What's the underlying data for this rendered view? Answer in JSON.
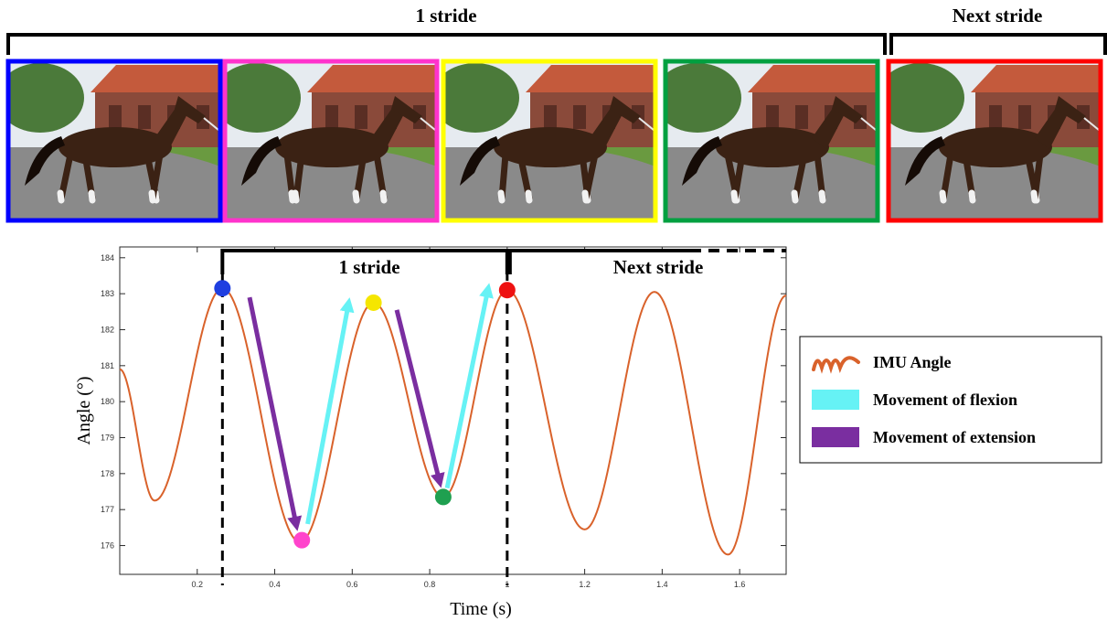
{
  "top_strip": {
    "stride_label": "1 stride",
    "next_stride_label": "Next stride",
    "frames": [
      {
        "border_color": "#0000ff"
      },
      {
        "border_color": "#ff33cc"
      },
      {
        "border_color": "#ffff00"
      },
      {
        "border_color": "#00a040"
      },
      {
        "border_color": "#ff0000"
      }
    ],
    "palette": {
      "sky": "#e6ebf0",
      "trees": "#4b7a3a",
      "roof": "#c45a3c",
      "wall": "#8a4a3a",
      "ground": "#8a8a8a",
      "grass": "#6a9a40",
      "horse": "#3b2214",
      "mane": "#150b06",
      "socks": "#f2f2f2"
    }
  },
  "chart_data": {
    "type": "line",
    "title": "",
    "xlabel": "Time (s)",
    "ylabel": "Angle (°)",
    "xlim": [
      0,
      1.72
    ],
    "ylim": [
      175.2,
      184.3
    ],
    "xticks": [
      0.2,
      0.4,
      0.6,
      0.8,
      1,
      1.2,
      1.4,
      1.6
    ],
    "xtick_labels": [
      "0.2",
      "0.4",
      "0.6",
      "0.8",
      "1",
      "1.2",
      "1.4",
      "1.6"
    ],
    "yticks": [
      176,
      177,
      178,
      179,
      180,
      181,
      182,
      183,
      184
    ],
    "ytick_labels": [
      "176",
      "177",
      "178",
      "179",
      "180",
      "181",
      "182",
      "183",
      "184"
    ],
    "grid": false,
    "series": [
      {
        "name": "IMU Angle",
        "color": "#d9622b",
        "extrema": [
          [
            0.0,
            180.9
          ],
          [
            0.09,
            177.25
          ],
          [
            0.265,
            183.15
          ],
          [
            0.465,
            176.1
          ],
          [
            0.655,
            182.75
          ],
          [
            0.835,
            177.35
          ],
          [
            1.0,
            183.1
          ],
          [
            1.2,
            176.45
          ],
          [
            1.38,
            183.05
          ],
          [
            1.57,
            175.75
          ],
          [
            1.72,
            182.95
          ]
        ]
      }
    ],
    "key_events": [
      {
        "x": 0.265,
        "y": 183.15,
        "color": "#1f3fe0"
      },
      {
        "x": 0.47,
        "y": 176.15,
        "color": "#ff44cc"
      },
      {
        "x": 0.655,
        "y": 182.75,
        "color": "#f5e600"
      },
      {
        "x": 0.835,
        "y": 177.35,
        "color": "#1fa050"
      },
      {
        "x": 1.0,
        "y": 183.1,
        "color": "#ee1111"
      }
    ],
    "stride_boundaries": [
      0.265,
      1.0
    ],
    "stride_labels": {
      "stride": "1 stride",
      "next": "Next stride"
    },
    "arrows": [
      {
        "type": "extension",
        "from": [
          0.335,
          182.9
        ],
        "to": [
          0.455,
          176.6
        ]
      },
      {
        "type": "flexion",
        "from": [
          0.485,
          176.6
        ],
        "to": [
          0.59,
          182.7
        ]
      },
      {
        "type": "extension",
        "from": [
          0.715,
          182.55
        ],
        "to": [
          0.825,
          177.8
        ]
      },
      {
        "type": "flexion",
        "from": [
          0.845,
          177.6
        ],
        "to": [
          0.95,
          183.1
        ]
      }
    ],
    "legend": {
      "position": "right",
      "entries": [
        {
          "label": "IMU Angle",
          "kind": "line",
          "color": "#d9622b"
        },
        {
          "label": "Movement of flexion",
          "kind": "patch",
          "color": "#66f2f5"
        },
        {
          "label": "Movement of extension",
          "kind": "patch",
          "color": "#7a2ea0"
        }
      ]
    }
  }
}
